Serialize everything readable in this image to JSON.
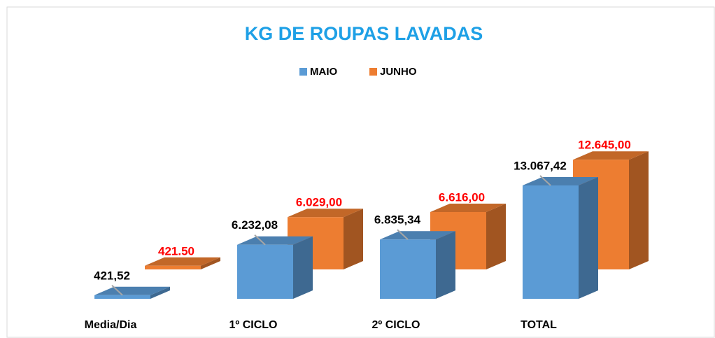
{
  "chart_data": {
    "type": "bar3d",
    "title": "KG DE ROUPAS LAVADAS",
    "categories": [
      "Media/Dia",
      "1º CICLO",
      "2º CICLO",
      "TOTAL"
    ],
    "series": [
      {
        "name": "MAIO",
        "color": "#5b9bd5",
        "values": [
          421.52,
          6232.08,
          6835.34,
          13067.42
        ],
        "value_labels": [
          "421,52",
          "6.232,08",
          "6.835,34",
          "13.067,42"
        ],
        "label_color": "#000000"
      },
      {
        "name": "JUNHO",
        "color": "#ed7d31",
        "values": [
          421.5,
          6029.0,
          6616.0,
          12645.0
        ],
        "value_labels": [
          "421.50",
          "6.029,00",
          "6.616,00",
          "12.645,00"
        ],
        "label_color": "#ff0000"
      }
    ],
    "legend": "top"
  }
}
